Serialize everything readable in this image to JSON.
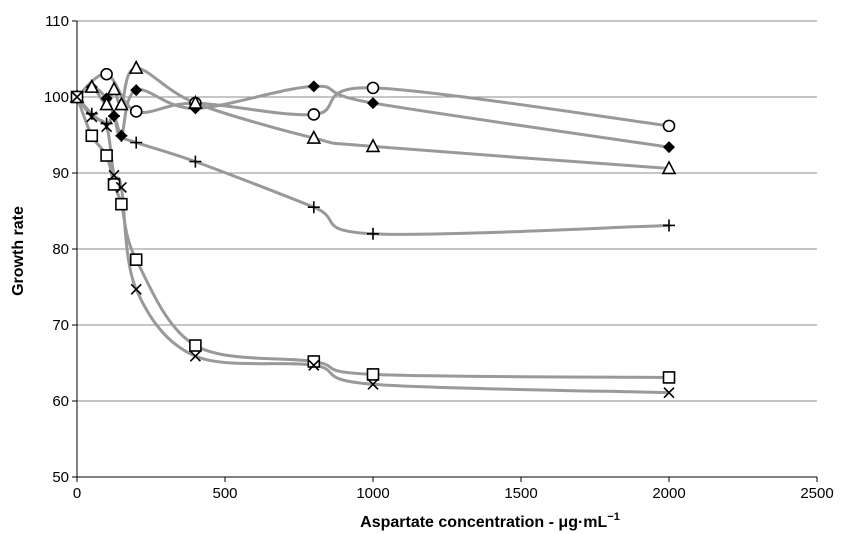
{
  "chart_data": {
    "type": "scatter",
    "xlabel": "Aspartate concentration - μg·mL",
    "xlabel_superscript": "−1",
    "ylabel": "Growth rate",
    "xlim": [
      0,
      2500
    ],
    "ylim": [
      50,
      110
    ],
    "x_ticks": [
      0,
      500,
      1000,
      1500,
      2000,
      2500
    ],
    "y_ticks": [
      50,
      60,
      70,
      80,
      90,
      100,
      110
    ],
    "grid": "horizontal",
    "legend": "none",
    "line_color": "#999999",
    "marker_color": "#000000",
    "series": [
      {
        "marker": "diamond",
        "x": [
          0,
          50,
          100,
          125,
          150,
          200,
          400,
          800,
          1000,
          2000
        ],
        "y": [
          100,
          101.3,
          99.8,
          97.5,
          94.9,
          100.9,
          98.5,
          101.4,
          99.2,
          93.4
        ]
      },
      {
        "marker": "circle",
        "x": [
          0,
          100,
          200,
          400,
          800,
          1000,
          2000
        ],
        "y": [
          100,
          103,
          98.1,
          99.2,
          97.7,
          101.2,
          96.2
        ]
      },
      {
        "marker": "triangle",
        "x": [
          0,
          50,
          100,
          125,
          150,
          200,
          400,
          800,
          1000,
          2000
        ],
        "y": [
          100,
          101.3,
          99,
          101,
          99,
          103.8,
          99.2,
          94.6,
          93.5,
          90.6
        ]
      },
      {
        "marker": "plus",
        "x": [
          0,
          50,
          100,
          125,
          150,
          200,
          400,
          800,
          1000,
          2000
        ],
        "y": [
          100,
          97.8,
          96.5,
          97.5,
          94.9,
          94,
          91.5,
          85.5,
          82,
          83.1
        ]
      },
      {
        "marker": "square",
        "x": [
          0,
          50,
          100,
          125,
          150,
          200,
          400,
          800,
          1000,
          2000
        ],
        "y": [
          100,
          94.9,
          92.3,
          88.5,
          85.9,
          78.6,
          67.3,
          65.2,
          63.5,
          63.1
        ]
      },
      {
        "marker": "cross",
        "x": [
          0,
          50,
          100,
          125,
          150,
          200,
          400,
          800,
          1000,
          2000
        ],
        "y": [
          100,
          97.4,
          96.1,
          89.7,
          88.1,
          74.7,
          65.9,
          64.7,
          62.2,
          61.1
        ]
      }
    ]
  }
}
